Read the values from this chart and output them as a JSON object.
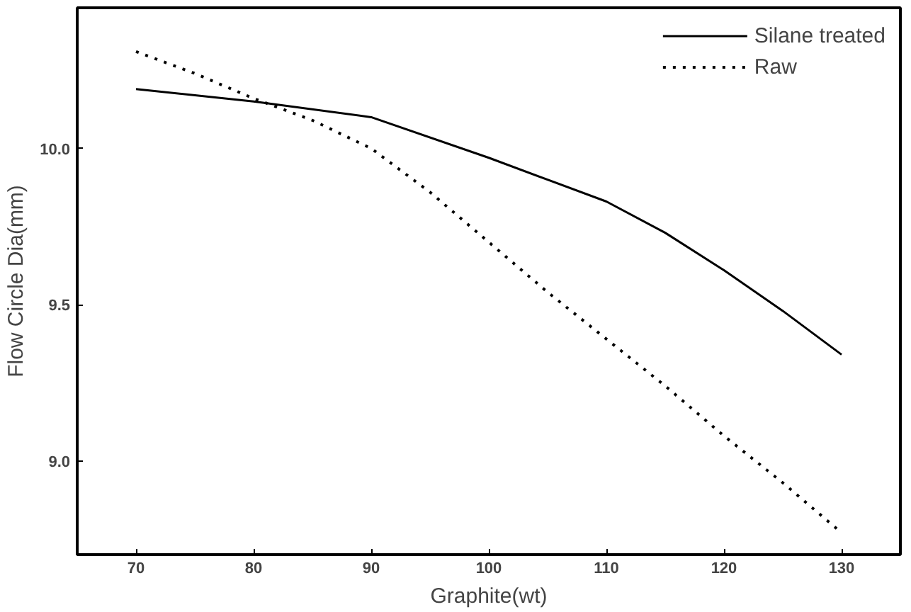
{
  "chart_data": {
    "type": "line",
    "xlabel": "Graphite(wt)",
    "ylabel": "Flow Circle Dia(mm)",
    "xlim": [
      65,
      135
    ],
    "ylim": [
      8.7,
      10.45
    ],
    "xticks": [
      70,
      80,
      90,
      100,
      110,
      120,
      130
    ],
    "yticks": [
      {
        "value": 9.0,
        "label": "9.0"
      },
      {
        "value": 9.5,
        "label": "9.5"
      },
      {
        "value": 10.0,
        "label": "10.0"
      }
    ],
    "grid": false,
    "legend": "top right",
    "series": [
      {
        "name": "Silane treated",
        "color": "#000000",
        "line_style": "solid",
        "x": [
          70,
          80,
          90,
          100,
          110,
          115,
          120,
          125,
          130
        ],
        "values": [
          10.19,
          10.15,
          10.1,
          9.97,
          9.83,
          9.73,
          9.61,
          9.48,
          9.34
        ]
      },
      {
        "name": "Raw",
        "color": "#000000",
        "line_style": "dotted",
        "x": [
          70,
          75,
          80,
          85,
          90,
          95,
          100,
          105,
          110,
          115,
          120,
          125,
          130
        ],
        "values": [
          10.31,
          10.24,
          10.16,
          10.09,
          10.0,
          9.86,
          9.7,
          9.54,
          9.39,
          9.24,
          9.08,
          8.93,
          8.77
        ]
      }
    ]
  }
}
